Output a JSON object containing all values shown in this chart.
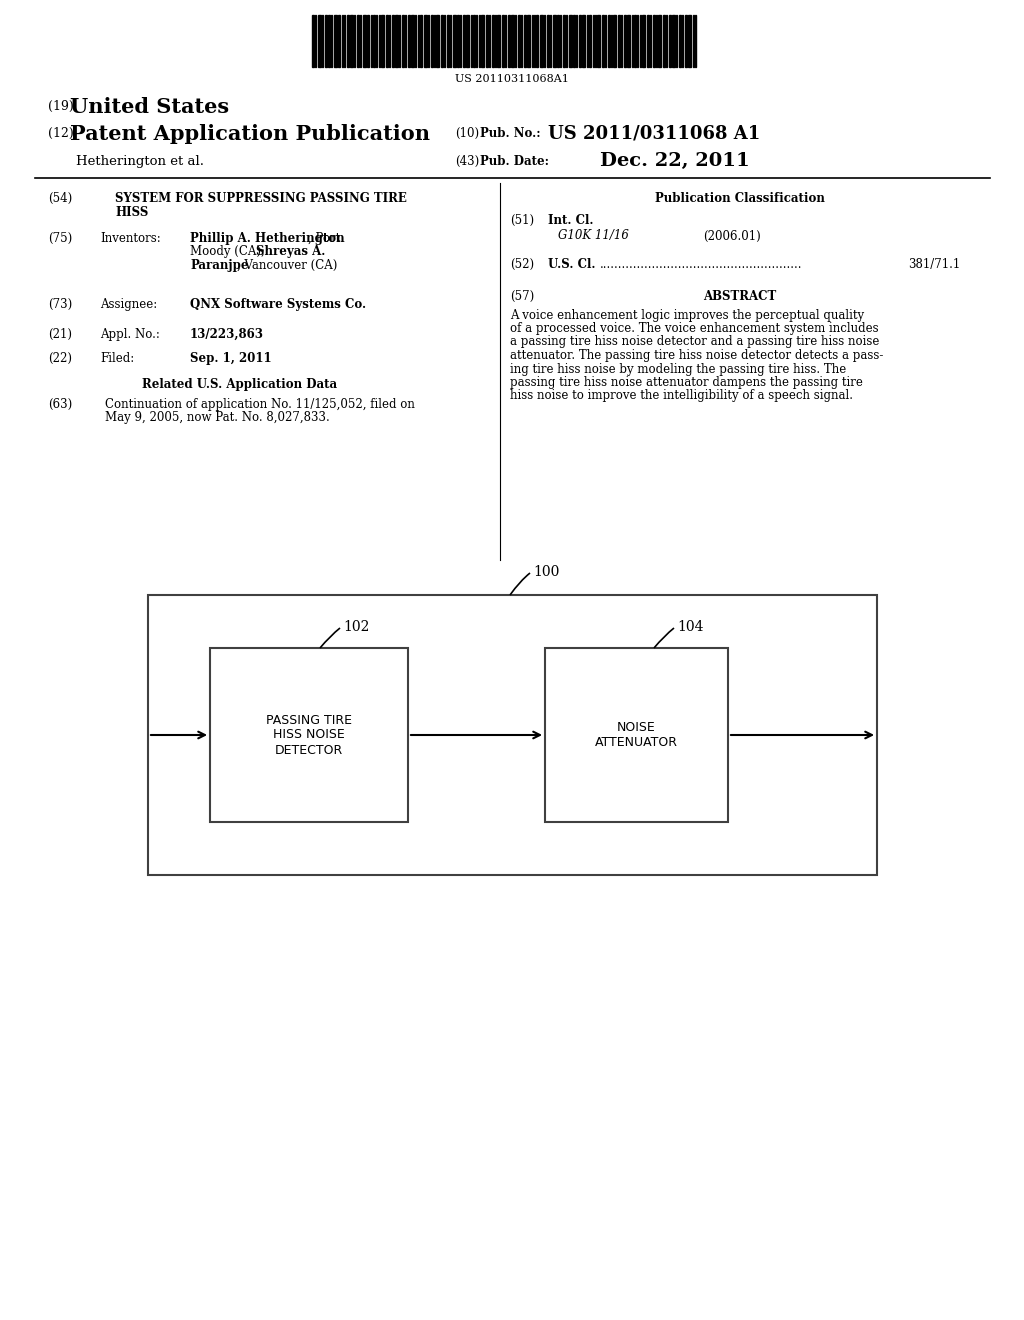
{
  "background_color": "#ffffff",
  "barcode_text": "US 20110311068A1",
  "us_label": "(19) United States",
  "patent_label": "(12) Patent Application Publication",
  "pub_no_label": "(10) Pub. No.:",
  "pub_no_value": "US 2011/0311068 A1",
  "author": "Hetherington et al.",
  "pub_date_label": "(43) Pub. Date:",
  "pub_date_value": "Dec. 22, 2011",
  "section54_label": "(54)",
  "section54_title1": "SYSTEM FOR SUPPRESSING PASSING TIRE",
  "section54_title2": "HISS",
  "section75_label": "(75)",
  "section75_key": "Inventors:",
  "section75_v1_bold": "Phillip A. Hetherington",
  "section75_v1_norm": ", Port",
  "section75_v2": "Moody (CA); ",
  "section75_v2_bold": "Shreyas A.",
  "section75_v3_bold": "Paranjpe",
  "section75_v3_norm": ", Vancouver (CA)",
  "section73_label": "(73)",
  "section73_key": "Assignee:",
  "section73_value": "QNX Software Systems Co.",
  "section21_label": "(21)",
  "section21_key": "Appl. No.:",
  "section21_value": "13/223,863",
  "section22_label": "(22)",
  "section22_key": "Filed:",
  "section22_value": "Sep. 1, 2011",
  "related_header": "Related U.S. Application Data",
  "section63_label": "(63)",
  "section63_v1": "Continuation of application No. 11/125,052, filed on",
  "section63_v2": "May 9, 2005, now Pat. No. 8,027,833.",
  "pub_class_header": "Publication Classification",
  "section51_label": "(51)",
  "section51_key": "Int. Cl.",
  "section51_class": "G10K 11/16",
  "section51_year": "(2006.01)",
  "section52_label": "(52)",
  "section52_key": "U.S. Cl. ",
  "section52_dots": "......................................................",
  "section52_value": "381/71.1",
  "section57_label": "(57)",
  "section57_header": "ABSTRACT",
  "abstract_lines": [
    "A voice enhancement logic improves the perceptual quality",
    "of a processed voice. The voice enhancement system includes",
    "a passing tire hiss noise detector and a passing tire hiss noise",
    "attenuator. The passing tire hiss noise detector detects a pass-",
    "ing tire hiss noise by modeling the passing tire hiss. The",
    "passing tire hiss noise attenuator dampens the passing tire",
    "hiss noise to improve the intelligibility of a speech signal."
  ],
  "diagram_label_100": "100",
  "diagram_label_102": "102",
  "diagram_label_104": "104",
  "box1_label": "PASSING TIRE\nHISS NOISE\nDETECTOR",
  "box2_label": "NOISE\nATTENUATOR"
}
